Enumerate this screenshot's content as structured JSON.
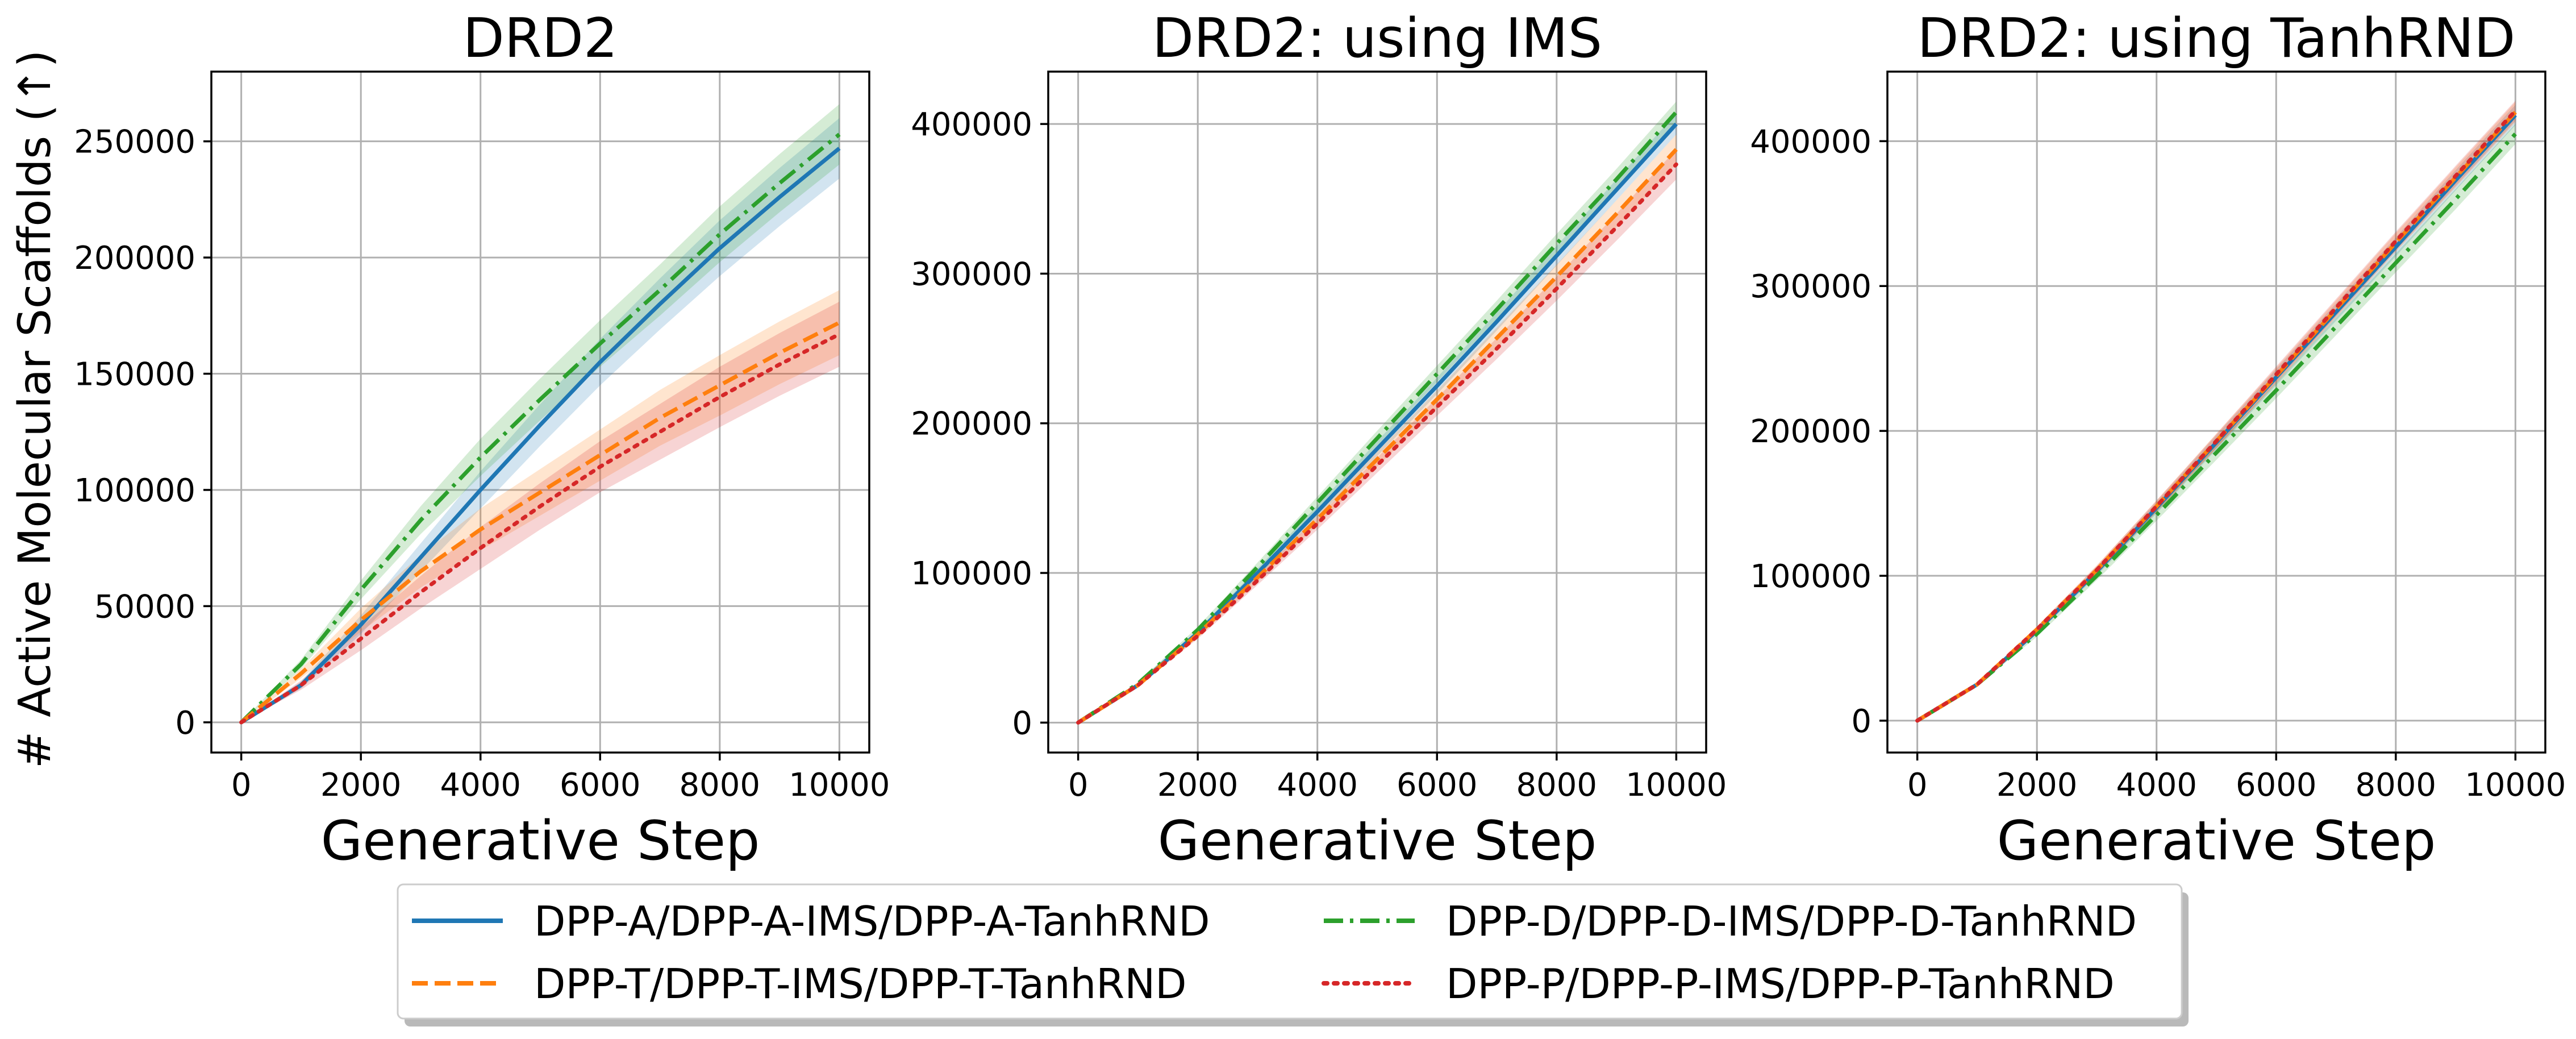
{
  "figure": {
    "ylabel": "# Active Molecular Scaffolds (↑)",
    "xlabel": "Generative Step"
  },
  "legend": {
    "location": "lower-center",
    "entries": [
      {
        "label": "DPP-A/DPP-A-IMS/DPP-A-TanhRND",
        "color": "#1f77b4",
        "style": "solid"
      },
      {
        "label": "DPP-D/DPP-D-IMS/DPP-D-TanhRND",
        "color": "#2ca02c",
        "style": "dashdot"
      },
      {
        "label": "DPP-T/DPP-T-IMS/DPP-T-TanhRND",
        "color": "#ff7f0e",
        "style": "dashed"
      },
      {
        "label": "DPP-P/DPP-P-IMS/DPP-P-TanhRND",
        "color": "#d62728",
        "style": "dotted"
      }
    ]
  },
  "chart_data": [
    {
      "type": "line",
      "title": "DRD2",
      "xlabel": "Generative Step",
      "ylabel": "# Active Molecular Scaffolds (↑)",
      "xlim": [
        -500,
        10500
      ],
      "ylim": [
        -13000,
        280000
      ],
      "xticks": [
        0,
        2000,
        4000,
        6000,
        8000,
        10000
      ],
      "yticks": [
        0,
        50000,
        100000,
        150000,
        200000,
        250000
      ],
      "grid": true,
      "x": [
        0,
        1000,
        2000,
        3000,
        4000,
        5000,
        6000,
        7000,
        8000,
        9000,
        10000
      ],
      "series": [
        {
          "name": "DPP-A/DPP-A-IMS/DPP-A-TanhRND",
          "color": "#1f77b4",
          "style": "solid",
          "values": [
            0,
            16000,
            42000,
            71000,
            100000,
            128000,
            155000,
            180000,
            204000,
            226000,
            247000
          ],
          "band": [
            0,
            1500,
            4000,
            6000,
            8000,
            9000,
            10000,
            11000,
            12000,
            12500,
            13000
          ]
        },
        {
          "name": "DPP-D/DPP-D-IMS/DPP-D-TanhRND",
          "color": "#2ca02c",
          "style": "dashdot",
          "values": [
            0,
            25000,
            57000,
            87000,
            114000,
            139000,
            163000,
            186000,
            210000,
            232000,
            253000
          ],
          "band": [
            0,
            2000,
            4000,
            6000,
            8000,
            9000,
            10000,
            11000,
            12000,
            12500,
            13000
          ]
        },
        {
          "name": "DPP-T/DPP-T-IMS/DPP-T-TanhRND",
          "color": "#ff7f0e",
          "style": "dashed",
          "values": [
            0,
            21000,
            44000,
            65000,
            83000,
            99000,
            115000,
            131000,
            145000,
            159000,
            172000
          ],
          "band": [
            0,
            2000,
            5000,
            7000,
            9000,
            10000,
            11000,
            12000,
            13000,
            13500,
            14000
          ]
        },
        {
          "name": "DPP-P/DPP-P-IMS/DPP-P-TanhRND",
          "color": "#d62728",
          "style": "dotted",
          "values": [
            0,
            16000,
            36000,
            56000,
            75000,
            93000,
            110000,
            125000,
            140000,
            154000,
            167000
          ],
          "band": [
            0,
            2000,
            5000,
            7000,
            9000,
            10000,
            11000,
            12000,
            13000,
            13500,
            14000
          ]
        }
      ]
    },
    {
      "type": "line",
      "title": "DRD2: using IMS",
      "xlabel": "Generative Step",
      "ylabel": "",
      "xlim": [
        -500,
        10500
      ],
      "ylim": [
        -20000,
        435000
      ],
      "xticks": [
        0,
        2000,
        4000,
        6000,
        8000,
        10000
      ],
      "yticks": [
        0,
        100000,
        200000,
        300000,
        400000
      ],
      "grid": true,
      "x": [
        0,
        1000,
        2000,
        3000,
        4000,
        5000,
        6000,
        7000,
        8000,
        9000,
        10000
      ],
      "series": [
        {
          "name": "DPP-A/DPP-A-IMS/DPP-A-TanhRND",
          "color": "#1f77b4",
          "style": "solid",
          "values": [
            0,
            25000,
            60000,
            100000,
            141000,
            183000,
            225000,
            268000,
            312000,
            356000,
            400000
          ],
          "band": [
            0,
            1000,
            2000,
            3000,
            4000,
            5000,
            5500,
            6000,
            6500,
            7000,
            7000
          ]
        },
        {
          "name": "DPP-D/DPP-D-IMS/DPP-D-TanhRND",
          "color": "#2ca02c",
          "style": "dashdot",
          "values": [
            0,
            26000,
            62000,
            104000,
            147000,
            190000,
            233000,
            276000,
            320000,
            363000,
            408000
          ],
          "band": [
            0,
            1000,
            2000,
            3000,
            4000,
            5000,
            5500,
            6000,
            6500,
            7000,
            7000
          ]
        },
        {
          "name": "DPP-T/DPP-T-IMS/DPP-T-TanhRND",
          "color": "#ff7f0e",
          "style": "dashed",
          "values": [
            0,
            25000,
            59000,
            97000,
            136000,
            176000,
            216000,
            257000,
            298000,
            340000,
            383000
          ],
          "band": [
            0,
            1000,
            2000,
            3000,
            4000,
            5000,
            6000,
            7000,
            8000,
            9000,
            10000
          ]
        },
        {
          "name": "DPP-P/DPP-P-IMS/DPP-P-TanhRND",
          "color": "#d62728",
          "style": "dotted",
          "values": [
            0,
            25000,
            58000,
            95000,
            133000,
            172000,
            211000,
            250000,
            290000,
            331000,
            373000
          ],
          "band": [
            0,
            1000,
            2000,
            3000,
            4000,
            5000,
            6000,
            7000,
            8000,
            9000,
            10000
          ]
        }
      ]
    },
    {
      "type": "line",
      "title": "DRD2: using TanhRND",
      "xlabel": "Generative Step",
      "ylabel": "",
      "xlim": [
        -500,
        10500
      ],
      "ylim": [
        -22000,
        448000
      ],
      "xticks": [
        0,
        2000,
        4000,
        6000,
        8000,
        10000
      ],
      "yticks": [
        0,
        100000,
        200000,
        300000,
        400000
      ],
      "grid": true,
      "x": [
        0,
        1000,
        2000,
        3000,
        4000,
        5000,
        6000,
        7000,
        8000,
        9000,
        10000
      ],
      "series": [
        {
          "name": "DPP-A/DPP-A-IMS/DPP-A-TanhRND",
          "color": "#1f77b4",
          "style": "solid",
          "values": [
            0,
            25000,
            62000,
            103000,
            147000,
            192000,
            237000,
            282000,
            327000,
            373000,
            418000
          ],
          "band": [
            0,
            1000,
            2000,
            3000,
            4000,
            5000,
            5500,
            6000,
            6500,
            7000,
            7000
          ]
        },
        {
          "name": "DPP-D/DPP-D-IMS/DPP-D-TanhRND",
          "color": "#2ca02c",
          "style": "dashdot",
          "values": [
            0,
            25000,
            60000,
            100000,
            142000,
            185000,
            228000,
            272000,
            316000,
            360000,
            405000
          ],
          "band": [
            0,
            1000,
            2000,
            3000,
            4000,
            5000,
            5500,
            6000,
            6500,
            7000,
            7000
          ]
        },
        {
          "name": "DPP-T/DPP-T-IMS/DPP-T-TanhRND",
          "color": "#ff7f0e",
          "style": "dashed",
          "values": [
            0,
            25000,
            63000,
            104000,
            148000,
            193000,
            238000,
            284000,
            330000,
            375000,
            420000
          ],
          "band": [
            0,
            1000,
            2000,
            3000,
            4000,
            5000,
            5500,
            6000,
            6500,
            7000,
            7000
          ]
        },
        {
          "name": "DPP-P/DPP-P-IMS/DPP-P-TanhRND",
          "color": "#d62728",
          "style": "dotted",
          "values": [
            0,
            25000,
            63000,
            104000,
            148000,
            193000,
            239000,
            285000,
            331000,
            376000,
            421000
          ],
          "band": [
            0,
            1000,
            2000,
            3000,
            4000,
            5000,
            5500,
            6000,
            6500,
            7000,
            7000
          ]
        }
      ]
    }
  ]
}
